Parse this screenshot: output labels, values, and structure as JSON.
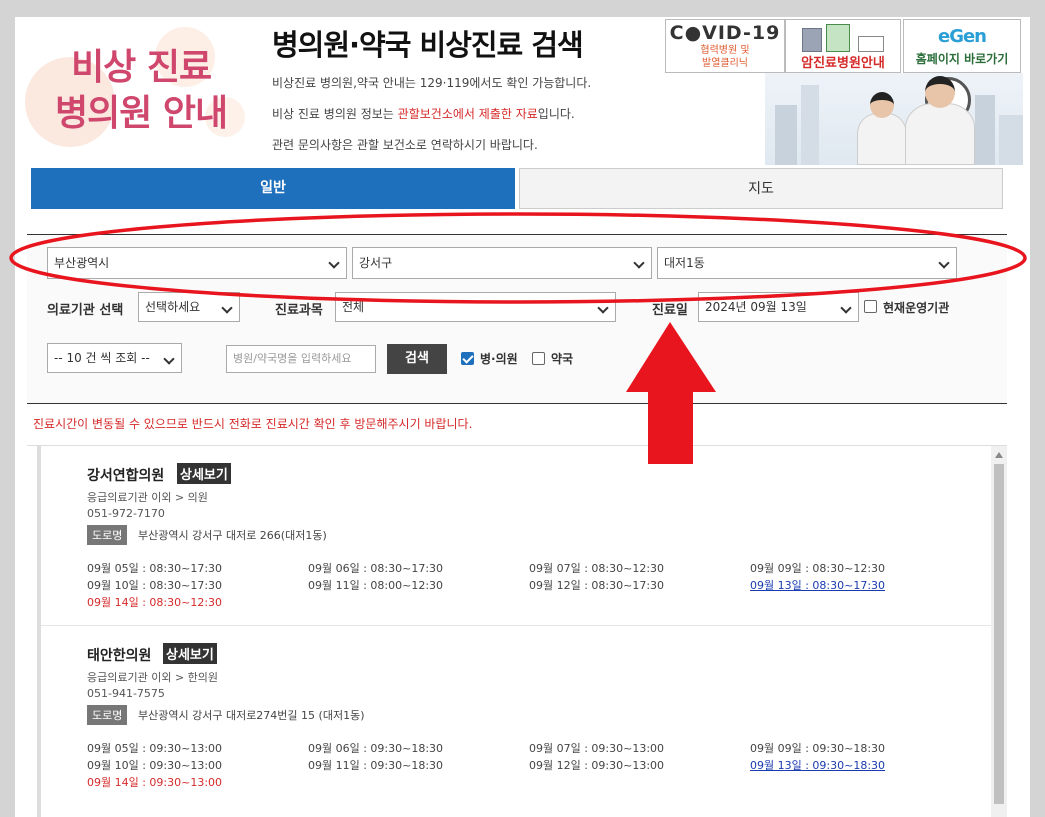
{
  "header": {
    "logo_line1": "비상 진료",
    "logo_line2": "병의원 안내",
    "title": "병의원·약국 비상진료 검색",
    "desc1": "비상진료 병의원,약국 안내는 129·119에서도 확인 가능합니다.",
    "desc2_pre": "비상 진료 병의원 정보는 ",
    "desc2_red": "관할보건소에서 제출한 자료",
    "desc2_post": "입니다.",
    "desc3": "관련 문의사항은 관할 보건소로 연락하시기 바랍니다.",
    "banners": {
      "covid_title": "C●VID-19",
      "covid_sub1": "협력병원 및",
      "covid_sub2": "발열클리닉",
      "cancer_label": "암진료병원안내",
      "home_logo": "eGen",
      "home_label": "홈페이지 바로가기"
    }
  },
  "tabs": [
    {
      "label": "일반",
      "active": true
    },
    {
      "label": "지도",
      "active": false
    }
  ],
  "filters": {
    "city": "부산광역시",
    "district": "강서구",
    "dong": "대저1동",
    "facility_label": "의료기관 선택",
    "facility_value": "선택하세요",
    "dept_label": "진료과목",
    "dept_value": "전체",
    "date_label": "진료일",
    "date_value": "2024년 09월 13일",
    "operating_label": "현재운영기관",
    "page_size": "-- 10 건 씩 조회 --",
    "search_placeholder": "병원/약국명을 입력하세요",
    "search_button": "검색",
    "hospital_label": "병·의원",
    "pharmacy_label": "약국"
  },
  "notice": "진료시간이 변동될 수 있으므로 반드시 전화로 진료시간 확인 후 방문해주시기 바랍니다.",
  "results": [
    {
      "name": "강서연합의원",
      "detail": "상세보기",
      "category": "응급의료기관 이외 > 의원",
      "phone": "051-972-7170",
      "addr_tag": "도로명",
      "address": "부산광역시 강서구 대저로 266(대저1동)",
      "hours": [
        "09월 05일 : 08:30~17:30",
        "09월 06일 : 08:30~17:30",
        "09월 07일 : 08:30~12:30",
        "09월 09일 : 08:30~12:30",
        "09월 10일 : 08:30~17:30",
        "09월 11일 : 08:00~12:30",
        "09월 12일 : 08:30~17:30",
        "09월 13일 : 08:30~17:30",
        "09월 14일 : 08:30~12:30"
      ]
    },
    {
      "name": "태안한의원",
      "detail": "상세보기",
      "category": "응급의료기관 이외 > 한의원",
      "phone": "051-941-7575",
      "addr_tag": "도로명",
      "address": "부산광역시 강서구 대저로274번길 15 (대저1동)",
      "hours": [
        "09월 05일 : 09:30~13:00",
        "09월 06일 : 09:30~18:30",
        "09월 07일 : 09:30~13:00",
        "09월 09일 : 09:30~18:30",
        "09월 10일 : 09:30~13:00",
        "09월 11일 : 09:30~18:30",
        "09월 12일 : 09:30~13:00",
        "09월 13일 : 09:30~18:30",
        "09월 14일 : 09:30~13:00"
      ]
    }
  ],
  "colors": {
    "accent_blue": "#1e6fbc",
    "notice_red": "#d62a2a",
    "annotation_red": "#e8141e"
  }
}
